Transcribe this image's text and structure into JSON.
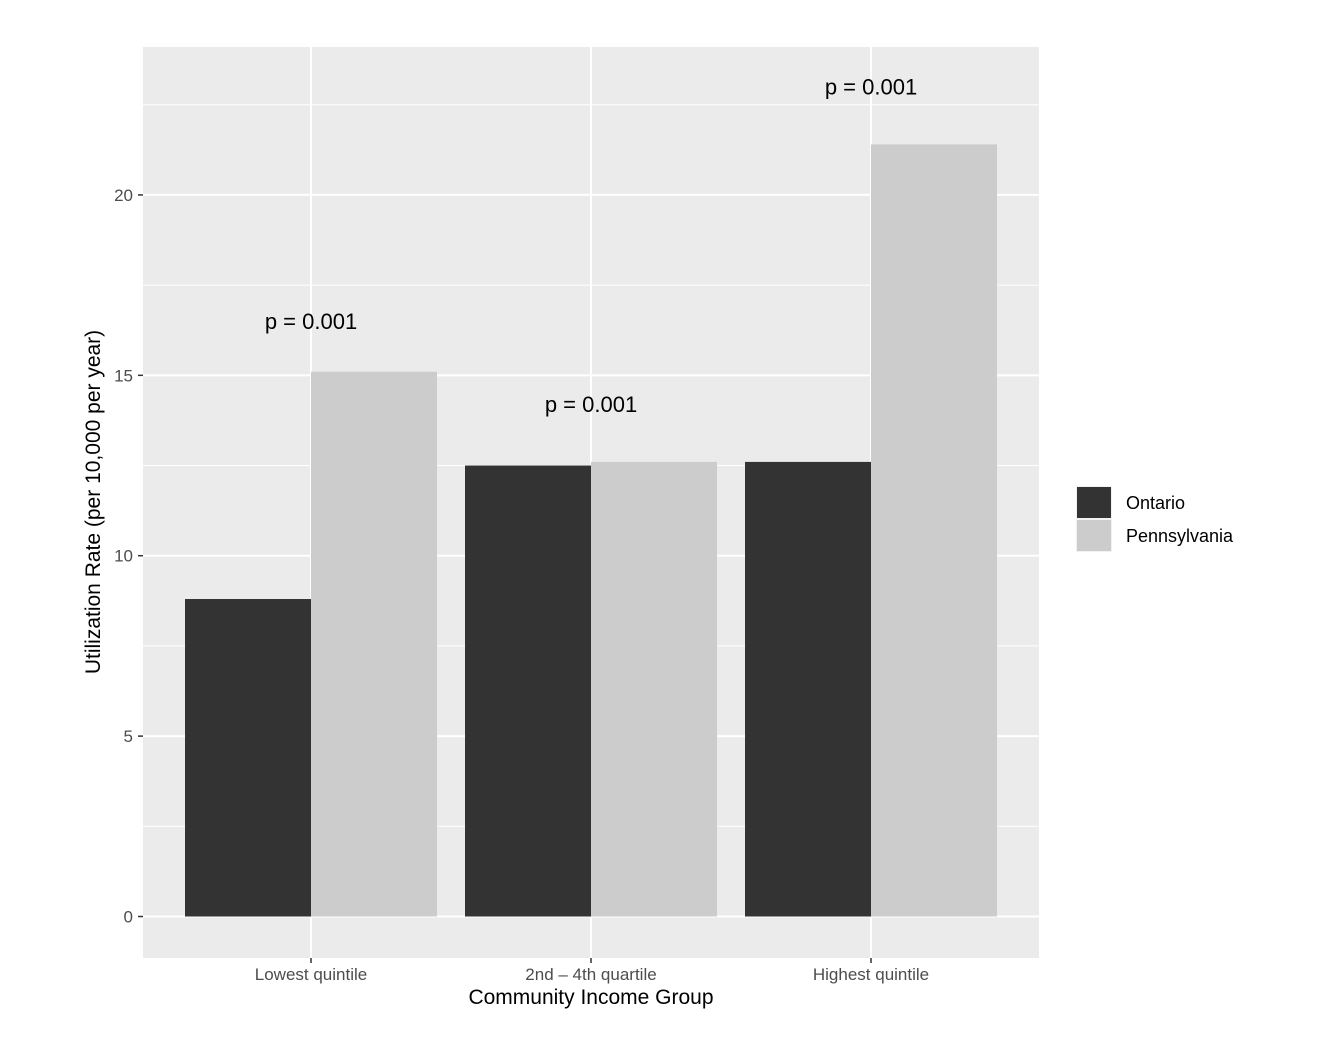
{
  "chart_data": {
    "type": "bar",
    "title": "",
    "xlabel": "Community Income Group",
    "ylabel": "Utilization Rate (per 10,000 per year)",
    "categories": [
      "Lowest quintile",
      "2nd – 4th quartile",
      "Highest quintile"
    ],
    "series": [
      {
        "name": "Ontario",
        "color": "#333333",
        "values": [
          8.8,
          12.5,
          12.6
        ]
      },
      {
        "name": "Pennsylvania",
        "color": "#cccccc",
        "values": [
          15.1,
          12.6,
          21.4
        ]
      }
    ],
    "yticks": [
      0,
      5,
      10,
      15,
      20
    ],
    "ylim": [
      -1.15,
      24.1
    ],
    "grid": true,
    "panel_background": "#ebebeb",
    "legend_position": "right",
    "annotations": [
      {
        "category_index": 0,
        "y": 16.5,
        "text": "p = 0.001"
      },
      {
        "category_index": 1,
        "y": 14.2,
        "text": "p = 0.001"
      },
      {
        "category_index": 2,
        "y": 23.0,
        "text": "p = 0.001"
      }
    ]
  }
}
